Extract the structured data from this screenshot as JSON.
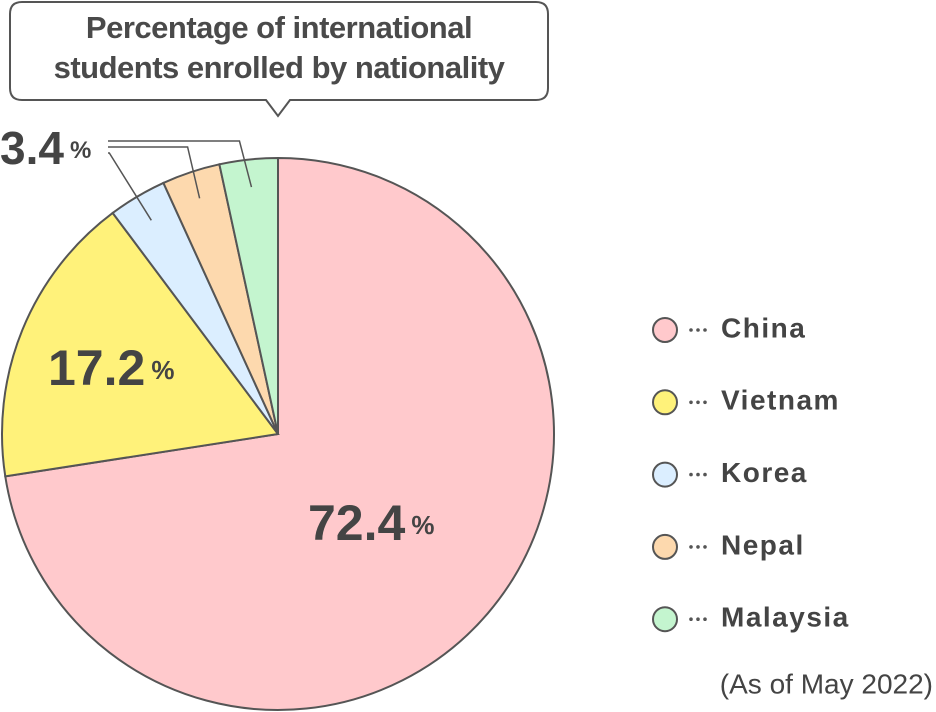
{
  "chart_data": {
    "type": "pie",
    "title": "Percentage of international\nstudents enrolled by nationality",
    "categories": [
      "China",
      "Vietnam",
      "Korea",
      "Nepal",
      "Malaysia"
    ],
    "values": [
      72.4,
      17.2,
      3.4,
      3.4,
      3.4
    ],
    "value_labels": [
      "72.4%",
      "17.2%",
      "3.4%",
      null,
      null
    ],
    "colors": [
      "#ffc9cc",
      "#fff27a",
      "#dbeeff",
      "#fdd9ae",
      "#c4f5cf"
    ],
    "note": "(As of May 2022)"
  }
}
